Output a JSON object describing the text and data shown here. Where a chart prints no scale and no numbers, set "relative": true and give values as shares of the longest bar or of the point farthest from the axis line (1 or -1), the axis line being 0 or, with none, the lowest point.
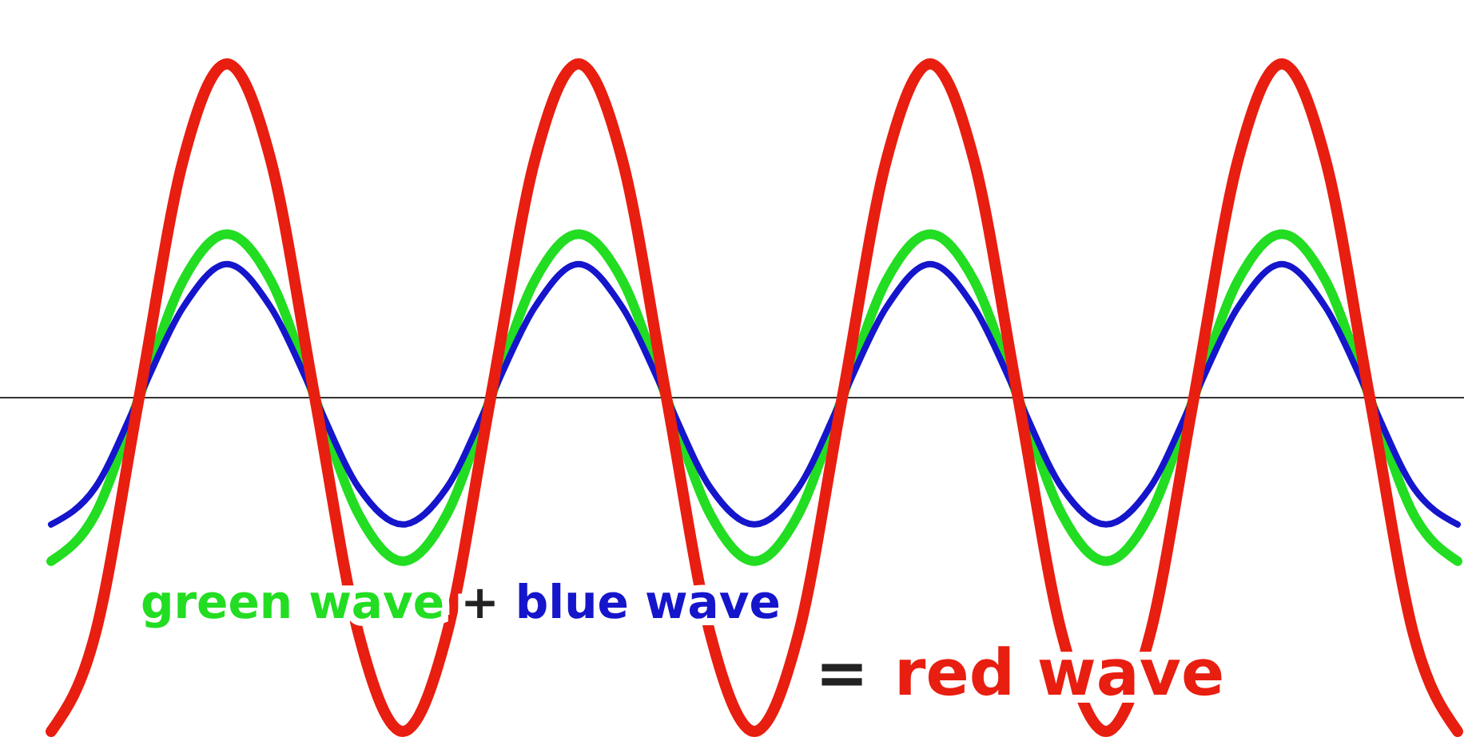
{
  "chart_data": {
    "type": "line",
    "relative": true,
    "categories": [
      null,
      null,
      null,
      null,
      null,
      null,
      null,
      null,
      null,
      null,
      null,
      null,
      null,
      null,
      null,
      null,
      null,
      null,
      null,
      null,
      null,
      null,
      null,
      null,
      null,
      null,
      null,
      null,
      null,
      null,
      null,
      null,
      null
    ],
    "series": [
      {
        "color": "#22dd22",
        "values": [
          -0.49,
          -0.35,
          0,
          0.35,
          0.49,
          0.35,
          0,
          -0.35,
          -0.49,
          -0.35,
          0,
          0.35,
          0.49,
          0.35,
          0,
          -0.35,
          -0.49,
          -0.35,
          0,
          0.35,
          0.49,
          0.35,
          0,
          -0.35,
          -0.49,
          -0.35,
          0,
          0.35,
          0.49,
          0.35,
          0,
          -0.35,
          -0.49
        ]
      },
      {
        "color": "#1515cc",
        "values": [
          -0.38,
          -0.27,
          0,
          0.27,
          0.4,
          0.27,
          0,
          -0.27,
          -0.38,
          -0.27,
          0,
          0.27,
          0.4,
          0.27,
          0,
          -0.27,
          -0.38,
          -0.27,
          0,
          0.27,
          0.4,
          0.27,
          0,
          -0.27,
          -0.38,
          -0.27,
          0,
          0.27,
          0.4,
          0.27,
          0,
          -0.27,
          -0.38
        ]
      },
      {
        "color": "#e81e10",
        "values": [
          -1,
          -0.71,
          0,
          0.71,
          1,
          0.71,
          0,
          -0.71,
          -1,
          -0.71,
          0,
          0.71,
          1,
          0.71,
          0,
          -0.71,
          -1,
          -0.71,
          0,
          0.71,
          1,
          0.71,
          0,
          -0.71,
          -1,
          -0.71,
          0,
          0.71,
          1,
          0.71,
          0,
          -0.71,
          -1
        ]
      }
    ],
    "annotations": [
      "green wave",
      "+",
      "blue wave",
      "=",
      "red wave"
    ],
    "grid": false,
    "marker": "none",
    "line_style": "solid"
  }
}
